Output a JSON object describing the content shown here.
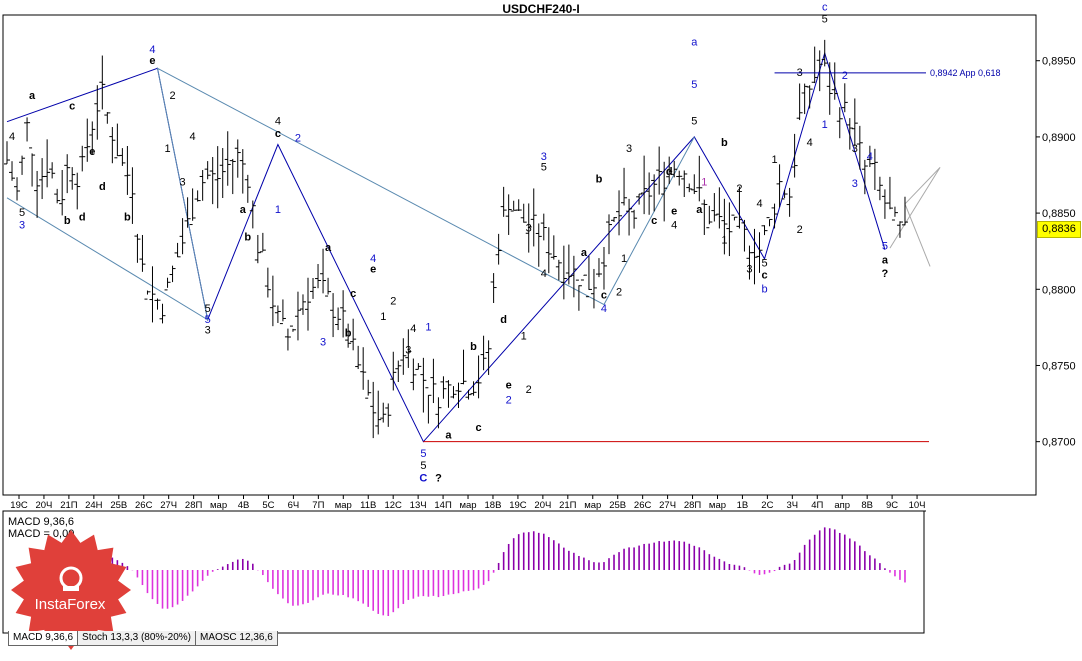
{
  "title": "USDCHF240-I",
  "price_tag": "0,8836",
  "chart_data": {
    "type": "ohlc",
    "symbol": "USDCHF240-I",
    "timeframe": "H4",
    "ylim": [
      0.8665,
      0.898
    ],
    "y_ticks": [
      "0,8950",
      "0,8900",
      "0,8850",
      "0,8800",
      "0,8750",
      "0,8700"
    ],
    "x_ticks": [
      "19С",
      "20Ч",
      "21П",
      "24Н",
      "25В",
      "26С",
      "27Ч",
      "28П",
      "мар",
      "4В",
      "5С",
      "6Ч",
      "7П",
      "мар",
      "11В",
      "12С",
      "13Ч",
      "14П",
      "мар",
      "18В",
      "19С",
      "20Ч",
      "21П",
      "мар",
      "25В",
      "26С",
      "27Ч",
      "28П",
      "мар",
      "1В",
      "2С",
      "3Ч",
      "4П",
      "апр",
      "8В",
      "9С",
      "10Ч"
    ],
    "grid": false,
    "current_price": 0.8836,
    "price_series": [
      0.8885,
      0.8862,
      0.891,
      0.887,
      0.8885,
      0.8855,
      0.8885,
      0.8872,
      0.8905,
      0.893,
      0.8905,
      0.8882,
      0.887,
      0.8812,
      0.8795,
      0.879,
      0.8815,
      0.8835,
      0.886,
      0.8875,
      0.8872,
      0.888,
      0.8888,
      0.8878,
      0.883,
      0.8805,
      0.8778,
      0.8768,
      0.879,
      0.88,
      0.8802,
      0.879,
      0.8782,
      0.8762,
      0.8742,
      0.8722,
      0.871,
      0.874,
      0.8762,
      0.8752,
      0.874,
      0.873,
      0.8733,
      0.8742,
      0.8738,
      0.874,
      0.8752,
      0.883,
      0.886,
      0.8848,
      0.8842,
      0.8838,
      0.8828,
      0.8818,
      0.8812,
      0.8808,
      0.8802,
      0.882,
      0.8842,
      0.8852,
      0.8848,
      0.886,
      0.8868,
      0.8875,
      0.8882,
      0.8878,
      0.8865,
      0.885,
      0.8845,
      0.884,
      0.8838,
      0.8832,
      0.8825,
      0.8842,
      0.887,
      0.8862,
      0.8918,
      0.8935,
      0.895,
      0.8928,
      0.8918,
      0.891,
      0.888,
      0.8878,
      0.8858,
      0.8842,
      0.8836
    ],
    "labels": [
      {
        "t": "a",
        "x": 5,
        "p": 0.8925,
        "c": "black"
      },
      {
        "t": "4",
        "x": 1,
        "p": 0.8898,
        "c": "black"
      },
      {
        "t": "5",
        "x": 3,
        "p": 0.8848,
        "c": "black"
      },
      {
        "t": "3",
        "x": 3,
        "p": 0.884,
        "c": "blue"
      },
      {
        "t": "c",
        "x": 13,
        "p": 0.8918,
        "c": "black"
      },
      {
        "t": "b",
        "x": 12,
        "p": 0.8843,
        "c": "black"
      },
      {
        "t": "d",
        "x": 19,
        "p": 0.8865,
        "c": "black"
      },
      {
        "t": "e",
        "x": 17,
        "p": 0.8888,
        "c": "black"
      },
      {
        "t": "b",
        "x": 24,
        "p": 0.8845,
        "c": "black"
      },
      {
        "t": "d",
        "x": 15,
        "p": 0.8845,
        "c": "black"
      },
      {
        "t": "4",
        "x": 29,
        "p": 0.8955,
        "c": "blue"
      },
      {
        "t": "e",
        "x": 29,
        "p": 0.8948,
        "c": "black"
      },
      {
        "t": "2",
        "x": 33,
        "p": 0.8925,
        "c": "black"
      },
      {
        "t": "1",
        "x": 32,
        "p": 0.889,
        "c": "black"
      },
      {
        "t": "3",
        "x": 35,
        "p": 0.8868,
        "c": "black"
      },
      {
        "t": "4",
        "x": 37,
        "p": 0.8898,
        "c": "black"
      },
      {
        "t": "5",
        "x": 40,
        "p": 0.8785,
        "c": "black"
      },
      {
        "t": "5",
        "x": 40,
        "p": 0.8778,
        "c": "blue"
      },
      {
        "t": "3",
        "x": 40,
        "p": 0.8771,
        "c": "black"
      },
      {
        "t": "a",
        "x": 47,
        "p": 0.885,
        "c": "black"
      },
      {
        "t": "b",
        "x": 48,
        "p": 0.8832,
        "c": "black"
      },
      {
        "t": "4",
        "x": 54,
        "p": 0.8908,
        "c": "black"
      },
      {
        "t": "c",
        "x": 54,
        "p": 0.89,
        "c": "black"
      },
      {
        "t": "2",
        "x": 58,
        "p": 0.8897,
        "c": "blue"
      },
      {
        "t": "1",
        "x": 54,
        "p": 0.885,
        "c": "blue"
      },
      {
        "t": "a",
        "x": 64,
        "p": 0.8825,
        "c": "black"
      },
      {
        "t": "3",
        "x": 63,
        "p": 0.8763,
        "c": "blue"
      },
      {
        "t": "b",
        "x": 68,
        "p": 0.8769,
        "c": "black"
      },
      {
        "t": "c",
        "x": 69,
        "p": 0.8795,
        "c": "black"
      },
      {
        "t": "4",
        "x": 73,
        "p": 0.8818,
        "c": "blue"
      },
      {
        "t": "e",
        "x": 73,
        "p": 0.8811,
        "c": "black"
      },
      {
        "t": "1",
        "x": 75,
        "p": 0.878,
        "c": "black"
      },
      {
        "t": "2",
        "x": 77,
        "p": 0.879,
        "c": "black"
      },
      {
        "t": "4",
        "x": 81,
        "p": 0.8772,
        "c": "black"
      },
      {
        "t": "3",
        "x": 80,
        "p": 0.8758,
        "c": "black"
      },
      {
        "t": "1",
        "x": 84,
        "p": 0.8773,
        "c": "blue"
      },
      {
        "t": "5",
        "x": 83,
        "p": 0.869,
        "c": "blue"
      },
      {
        "t": "5",
        "x": 83,
        "p": 0.8682,
        "c": "black"
      },
      {
        "t": "C",
        "x": 83,
        "p": 0.8674,
        "c": "blue"
      },
      {
        "t": "?",
        "x": 86,
        "p": 0.8674,
        "c": "black"
      },
      {
        "t": "a",
        "x": 88,
        "p": 0.8702,
        "c": "black"
      },
      {
        "t": "c",
        "x": 94,
        "p": 0.8707,
        "c": "black"
      },
      {
        "t": "b",
        "x": 93,
        "p": 0.876,
        "c": "black"
      },
      {
        "t": "d",
        "x": 99,
        "p": 0.8778,
        "c": "black"
      },
      {
        "t": "e",
        "x": 100,
        "p": 0.8735,
        "c": "black"
      },
      {
        "t": "2",
        "x": 100,
        "p": 0.8725,
        "c": "blue"
      },
      {
        "t": "1",
        "x": 103,
        "p": 0.8767,
        "c": "black"
      },
      {
        "t": "2",
        "x": 104,
        "p": 0.8732,
        "c": "black"
      },
      {
        "t": "3",
        "x": 104,
        "p": 0.8838,
        "c": "black"
      },
      {
        "t": "4",
        "x": 107,
        "p": 0.8808,
        "c": "black"
      },
      {
        "t": "3",
        "x": 107,
        "p": 0.8885,
        "c": "blue"
      },
      {
        "t": "5",
        "x": 107,
        "p": 0.8878,
        "c": "black"
      },
      {
        "t": "a",
        "x": 115,
        "p": 0.8822,
        "c": "black"
      },
      {
        "t": "b",
        "x": 118,
        "p": 0.887,
        "c": "black"
      },
      {
        "t": "c",
        "x": 119,
        "p": 0.8794,
        "c": "black"
      },
      {
        "t": "4",
        "x": 119,
        "p": 0.8785,
        "c": "blue"
      },
      {
        "t": "1",
        "x": 123,
        "p": 0.8818,
        "c": "black"
      },
      {
        "t": "2",
        "x": 122,
        "p": 0.8796,
        "c": "black"
      },
      {
        "t": "3",
        "x": 124,
        "p": 0.889,
        "c": "black"
      },
      {
        "t": "c",
        "x": 129,
        "p": 0.8843,
        "c": "black"
      },
      {
        "t": "4",
        "x": 133,
        "p": 0.884,
        "c": "black"
      },
      {
        "t": "d",
        "x": 132,
        "p": 0.8875,
        "c": "black"
      },
      {
        "t": "e",
        "x": 133,
        "p": 0.8849,
        "c": "black"
      },
      {
        "t": "a",
        "x": 137,
        "p": 0.896,
        "c": "blue"
      },
      {
        "t": "5",
        "x": 137,
        "p": 0.8932,
        "c": "blue"
      },
      {
        "t": "5",
        "x": 137,
        "p": 0.8908,
        "c": "black"
      },
      {
        "t": "1",
        "x": 139,
        "p": 0.8868,
        "c": "purple"
      },
      {
        "t": "b",
        "x": 143,
        "p": 0.8894,
        "c": "black"
      },
      {
        "t": "a",
        "x": 138,
        "p": 0.885,
        "c": "black"
      },
      {
        "t": "2",
        "x": 146,
        "p": 0.8864,
        "c": "black"
      },
      {
        "t": "1",
        "x": 143,
        "p": 0.883,
        "c": "black"
      },
      {
        "t": "3",
        "x": 148,
        "p": 0.8811,
        "c": "black"
      },
      {
        "t": "4",
        "x": 150,
        "p": 0.8854,
        "c": "black"
      },
      {
        "t": "5",
        "x": 151,
        "p": 0.8815,
        "c": "black"
      },
      {
        "t": "c",
        "x": 151,
        "p": 0.8807,
        "c": "black"
      },
      {
        "t": "b",
        "x": 151,
        "p": 0.8798,
        "c": "blue"
      },
      {
        "t": "1",
        "x": 153,
        "p": 0.8883,
        "c": "black"
      },
      {
        "t": "3",
        "x": 158,
        "p": 0.894,
        "c": "black"
      },
      {
        "t": "2",
        "x": 158,
        "p": 0.8837,
        "c": "black"
      },
      {
        "t": "4",
        "x": 160,
        "p": 0.8894,
        "c": "black"
      },
      {
        "t": "c",
        "x": 163,
        "p": 0.8983,
        "c": "blue"
      },
      {
        "t": "5",
        "x": 163,
        "p": 0.8975,
        "c": "black"
      },
      {
        "t": "2",
        "x": 167,
        "p": 0.8938,
        "c": "blue"
      },
      {
        "t": "1",
        "x": 163,
        "p": 0.8906,
        "c": "blue"
      },
      {
        "t": "3",
        "x": 169,
        "p": 0.8867,
        "c": "blue"
      },
      {
        "t": "4",
        "x": 172,
        "p": 0.8885,
        "c": "blue"
      },
      {
        "t": "5",
        "x": 175,
        "p": 0.8826,
        "c": "blue"
      },
      {
        "t": "a",
        "x": 175,
        "p": 0.8817,
        "c": "black"
      },
      {
        "t": "?",
        "x": 175,
        "p": 0.8808,
        "c": "black"
      },
      {
        "t": "3",
        "x": 169,
        "p": 0.889,
        "c": "black"
      }
    ],
    "annotations": [
      {
        "text": "0,8942 App 0,618",
        "price": 0.8942
      }
    ],
    "support_line": 0.87
  },
  "indicator": {
    "label_line1": "MACD 9,36,6",
    "label_line2": "MACD = 0,00",
    "tabs": [
      "MACD 9,36,6",
      "Stoch 13,3,3 (80%-20%)",
      "MAOSC 12,36,6"
    ]
  },
  "logo_text": "InstaForex",
  "colors": {
    "background": "#ffffff",
    "bars": "#000000",
    "wave_line_blue": "#0000aa",
    "wave_line_light": "#5a8ab0",
    "support_line": "#cc0000",
    "macd_positive": "#8a00aa",
    "macd_negative": "#dd33dd",
    "price_tag": "#ffff00",
    "logo": "#e0403a"
  }
}
